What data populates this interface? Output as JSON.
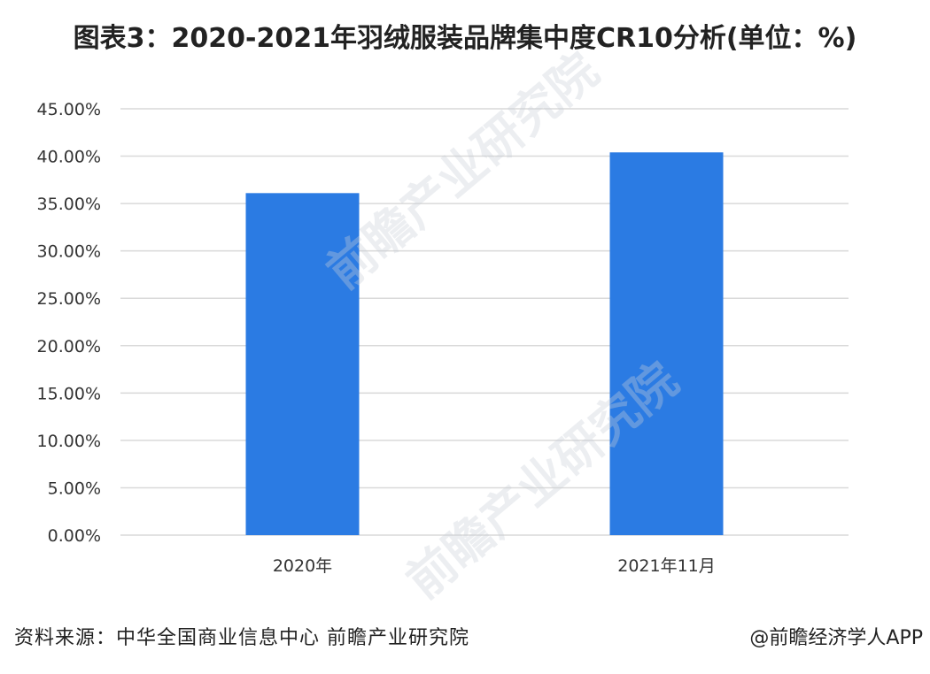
{
  "title": "图表3：2020-2021年羽绒服装品牌集中度CR10分析(单位：%)",
  "source": "资料来源：中华全国商业信息中心 前瞻产业研究院",
  "credit": "@前瞻经济学人APP",
  "watermark": "前瞻产业研究院",
  "colors": {
    "bar": "#2b7be3",
    "grid": "#d9d9d9",
    "axis_text": "#333333"
  },
  "chart_data": {
    "type": "bar",
    "categories": [
      "2020年",
      "2021年11月"
    ],
    "values": [
      36.1,
      40.4
    ],
    "ylim": [
      0,
      45
    ],
    "yticks": [
      "0.00%",
      "5.00%",
      "10.00%",
      "15.00%",
      "20.00%",
      "25.00%",
      "30.00%",
      "35.00%",
      "40.00%",
      "45.00%"
    ],
    "grid": true,
    "legend": "none"
  }
}
